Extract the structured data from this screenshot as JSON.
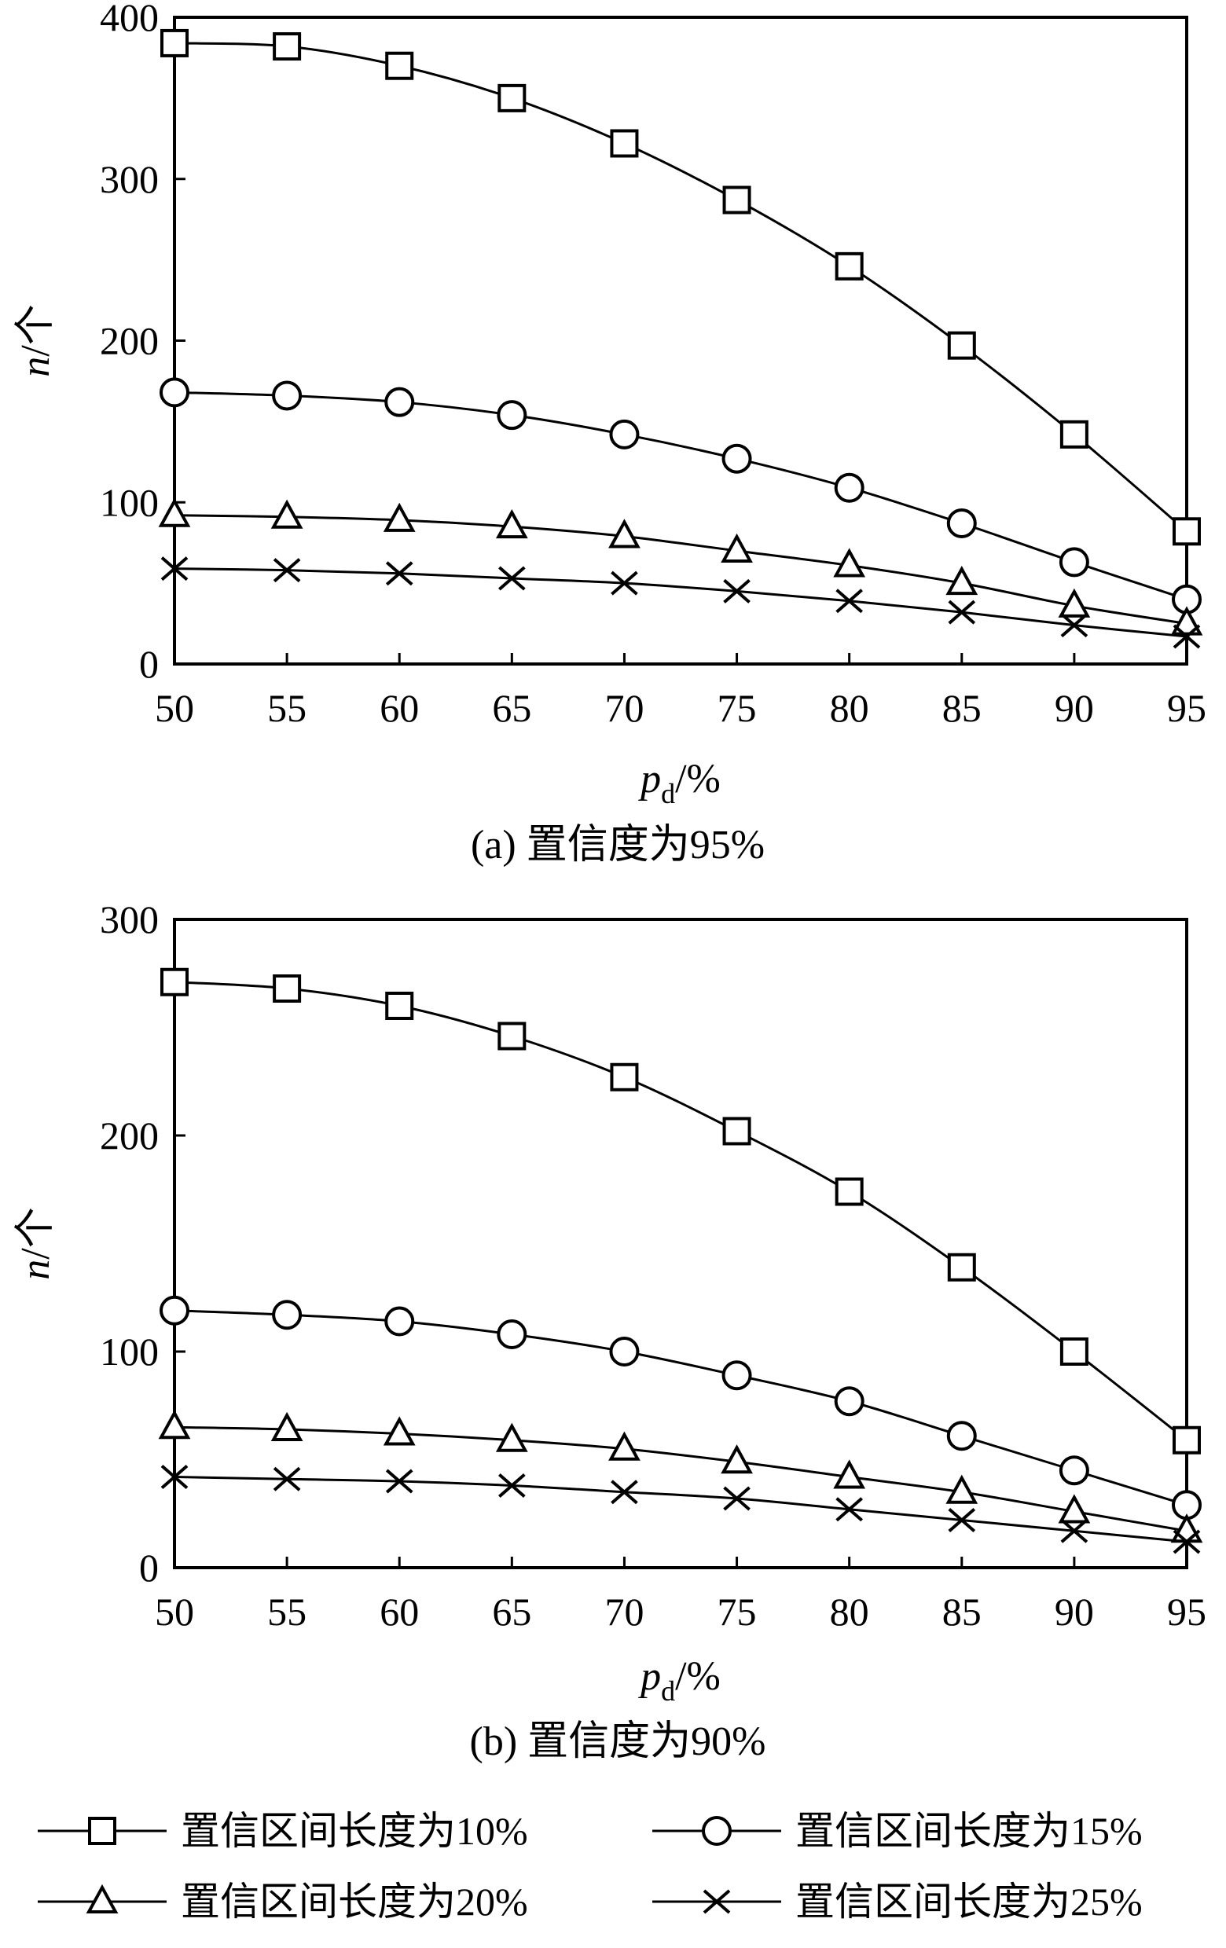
{
  "chart_data": [
    {
      "type": "line",
      "caption": "(a) 置信度为95%",
      "xlabel": "p",
      "xlabel_sub": "d",
      "xlabel_unit": "/%",
      "ylabel": "n/个",
      "x": [
        50,
        55,
        60,
        65,
        70,
        75,
        80,
        85,
        90,
        95
      ],
      "xlim": [
        50,
        95
      ],
      "ylim": [
        0,
        400
      ],
      "yticks": [
        0,
        100,
        200,
        300,
        400
      ],
      "grid": false,
      "series": [
        {
          "name": "置信区间长度为10%",
          "marker": "square",
          "values": [
            384,
            382,
            370,
            350,
            322,
            287,
            246,
            197,
            142,
            82
          ]
        },
        {
          "name": "置信区间长度为15%",
          "marker": "circle",
          "values": [
            168,
            166,
            162,
            154,
            142,
            127,
            109,
            87,
            63,
            40
          ]
        },
        {
          "name": "置信区间长度为20%",
          "marker": "triangle",
          "values": [
            92,
            91,
            89,
            85,
            79,
            70,
            61,
            50,
            36,
            25
          ]
        },
        {
          "name": "置信区间长度为25%",
          "marker": "x",
          "values": [
            59,
            58,
            56,
            53,
            50,
            45,
            39,
            32,
            24,
            17
          ]
        }
      ]
    },
    {
      "type": "line",
      "caption": "(b) 置信度为90%",
      "xlabel": "p",
      "xlabel_sub": "d",
      "xlabel_unit": "/%",
      "ylabel": "n/个",
      "x": [
        50,
        55,
        60,
        65,
        70,
        75,
        80,
        85,
        90,
        95
      ],
      "xlim": [
        50,
        95
      ],
      "ylim": [
        0,
        300
      ],
      "yticks": [
        0,
        100,
        200,
        300
      ],
      "grid": false,
      "series": [
        {
          "name": "置信区间长度为10%",
          "marker": "square",
          "values": [
            271,
            268,
            260,
            246,
            227,
            202,
            174,
            139,
            100,
            59
          ]
        },
        {
          "name": "置信区间长度为15%",
          "marker": "circle",
          "values": [
            119,
            117,
            114,
            108,
            100,
            89,
            77,
            61,
            45,
            29
          ]
        },
        {
          "name": "置信区间长度为20%",
          "marker": "triangle",
          "values": [
            65,
            64,
            62,
            59,
            55,
            49,
            42,
            35,
            26,
            17
          ]
        },
        {
          "name": "置信区间长度为25%",
          "marker": "x",
          "values": [
            42,
            41,
            40,
            38,
            35,
            32,
            27,
            22,
            17,
            12
          ]
        }
      ]
    }
  ],
  "legend": {
    "placement": "bottom",
    "items": [
      {
        "label": "置信区间长度为10%",
        "marker": "square"
      },
      {
        "label": "置信区间长度为15%",
        "marker": "circle"
      },
      {
        "label": "置信区间长度为20%",
        "marker": "triangle"
      },
      {
        "label": "置信区间长度为25%",
        "marker": "x"
      }
    ]
  }
}
